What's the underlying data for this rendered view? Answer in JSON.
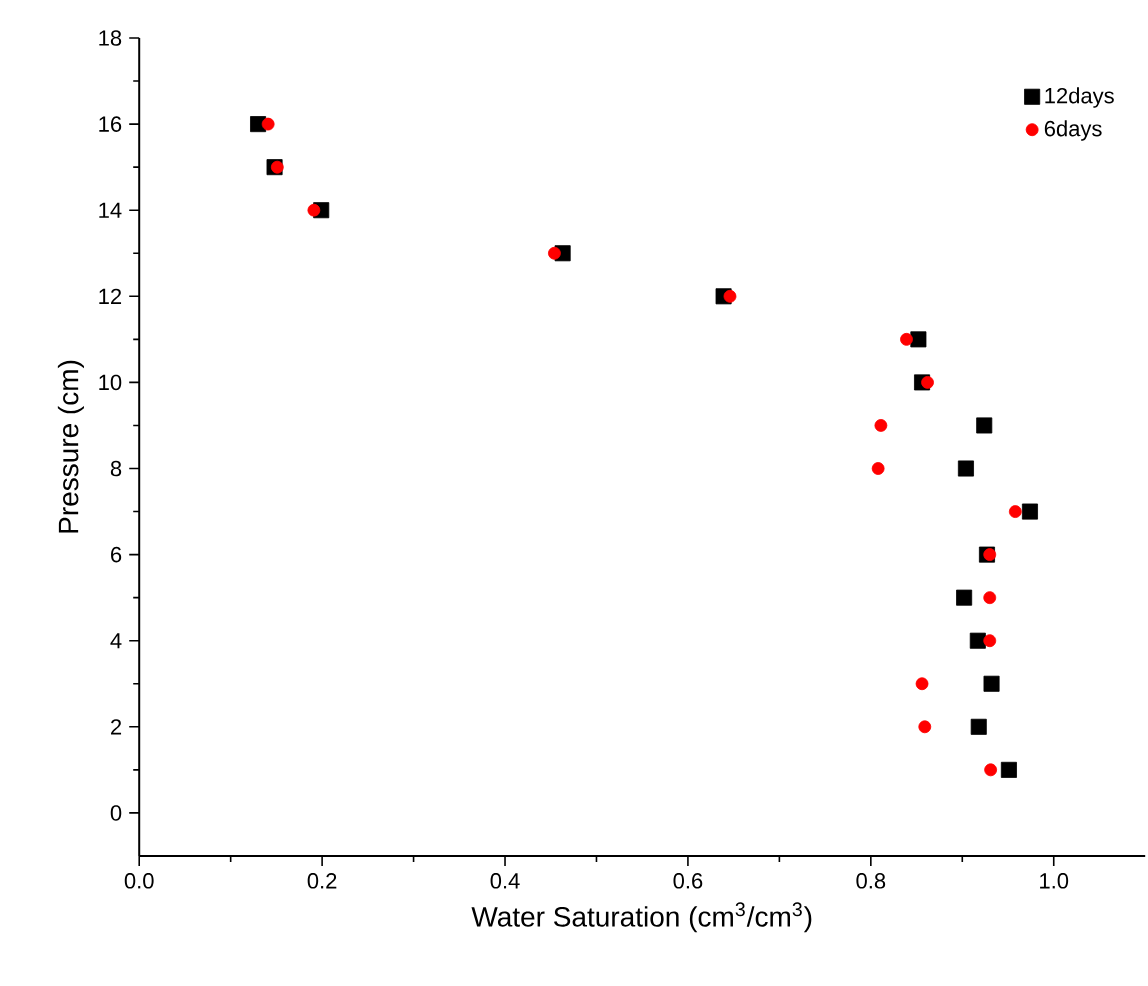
{
  "chart_data": {
    "type": "scatter",
    "xlabel": "Water Saturation (cm$^{3}$/cm$^{3}$)",
    "ylabel": "Pressure (cm)",
    "xlim": [
      0,
      1.1
    ],
    "ylim": [
      -1,
      18
    ],
    "xticks": [
      {
        "value": 0,
        "label": "0.0"
      },
      0.2,
      0.4,
      0.6,
      {
        "value": 0.8,
        "label": "0.8"
      },
      {
        "value": 1.0,
        "label": "1.0"
      }
    ],
    "yticks": [
      0,
      2,
      4,
      6,
      8,
      10,
      12,
      14,
      16,
      18
    ],
    "legend": "top right",
    "grid": false,
    "series": [
      {
        "name": "12days",
        "color": "#000000",
        "marker": "square",
        "x": [
          0.13,
          0.148,
          0.199,
          0.463,
          0.639,
          0.852,
          0.856,
          0.924,
          0.904,
          0.974,
          0.927,
          0.902,
          0.917,
          0.932,
          0.918,
          0.951
        ],
        "values": [
          16,
          15,
          14,
          13,
          12,
          11,
          10,
          9,
          8,
          7,
          6,
          5,
          4,
          3,
          2,
          1
        ]
      },
      {
        "name": "6days",
        "color": "#ff0000",
        "marker": "circle",
        "x": [
          0.141,
          0.151,
          0.191,
          0.454,
          0.646,
          0.839,
          0.862,
          0.811,
          0.808,
          0.958,
          0.93,
          0.93,
          0.93,
          0.856,
          0.859,
          0.931
        ],
        "values": [
          16,
          15,
          14,
          13,
          12,
          11,
          10,
          9,
          8,
          7,
          6,
          5,
          4,
          3,
          2,
          1
        ]
      }
    ]
  }
}
